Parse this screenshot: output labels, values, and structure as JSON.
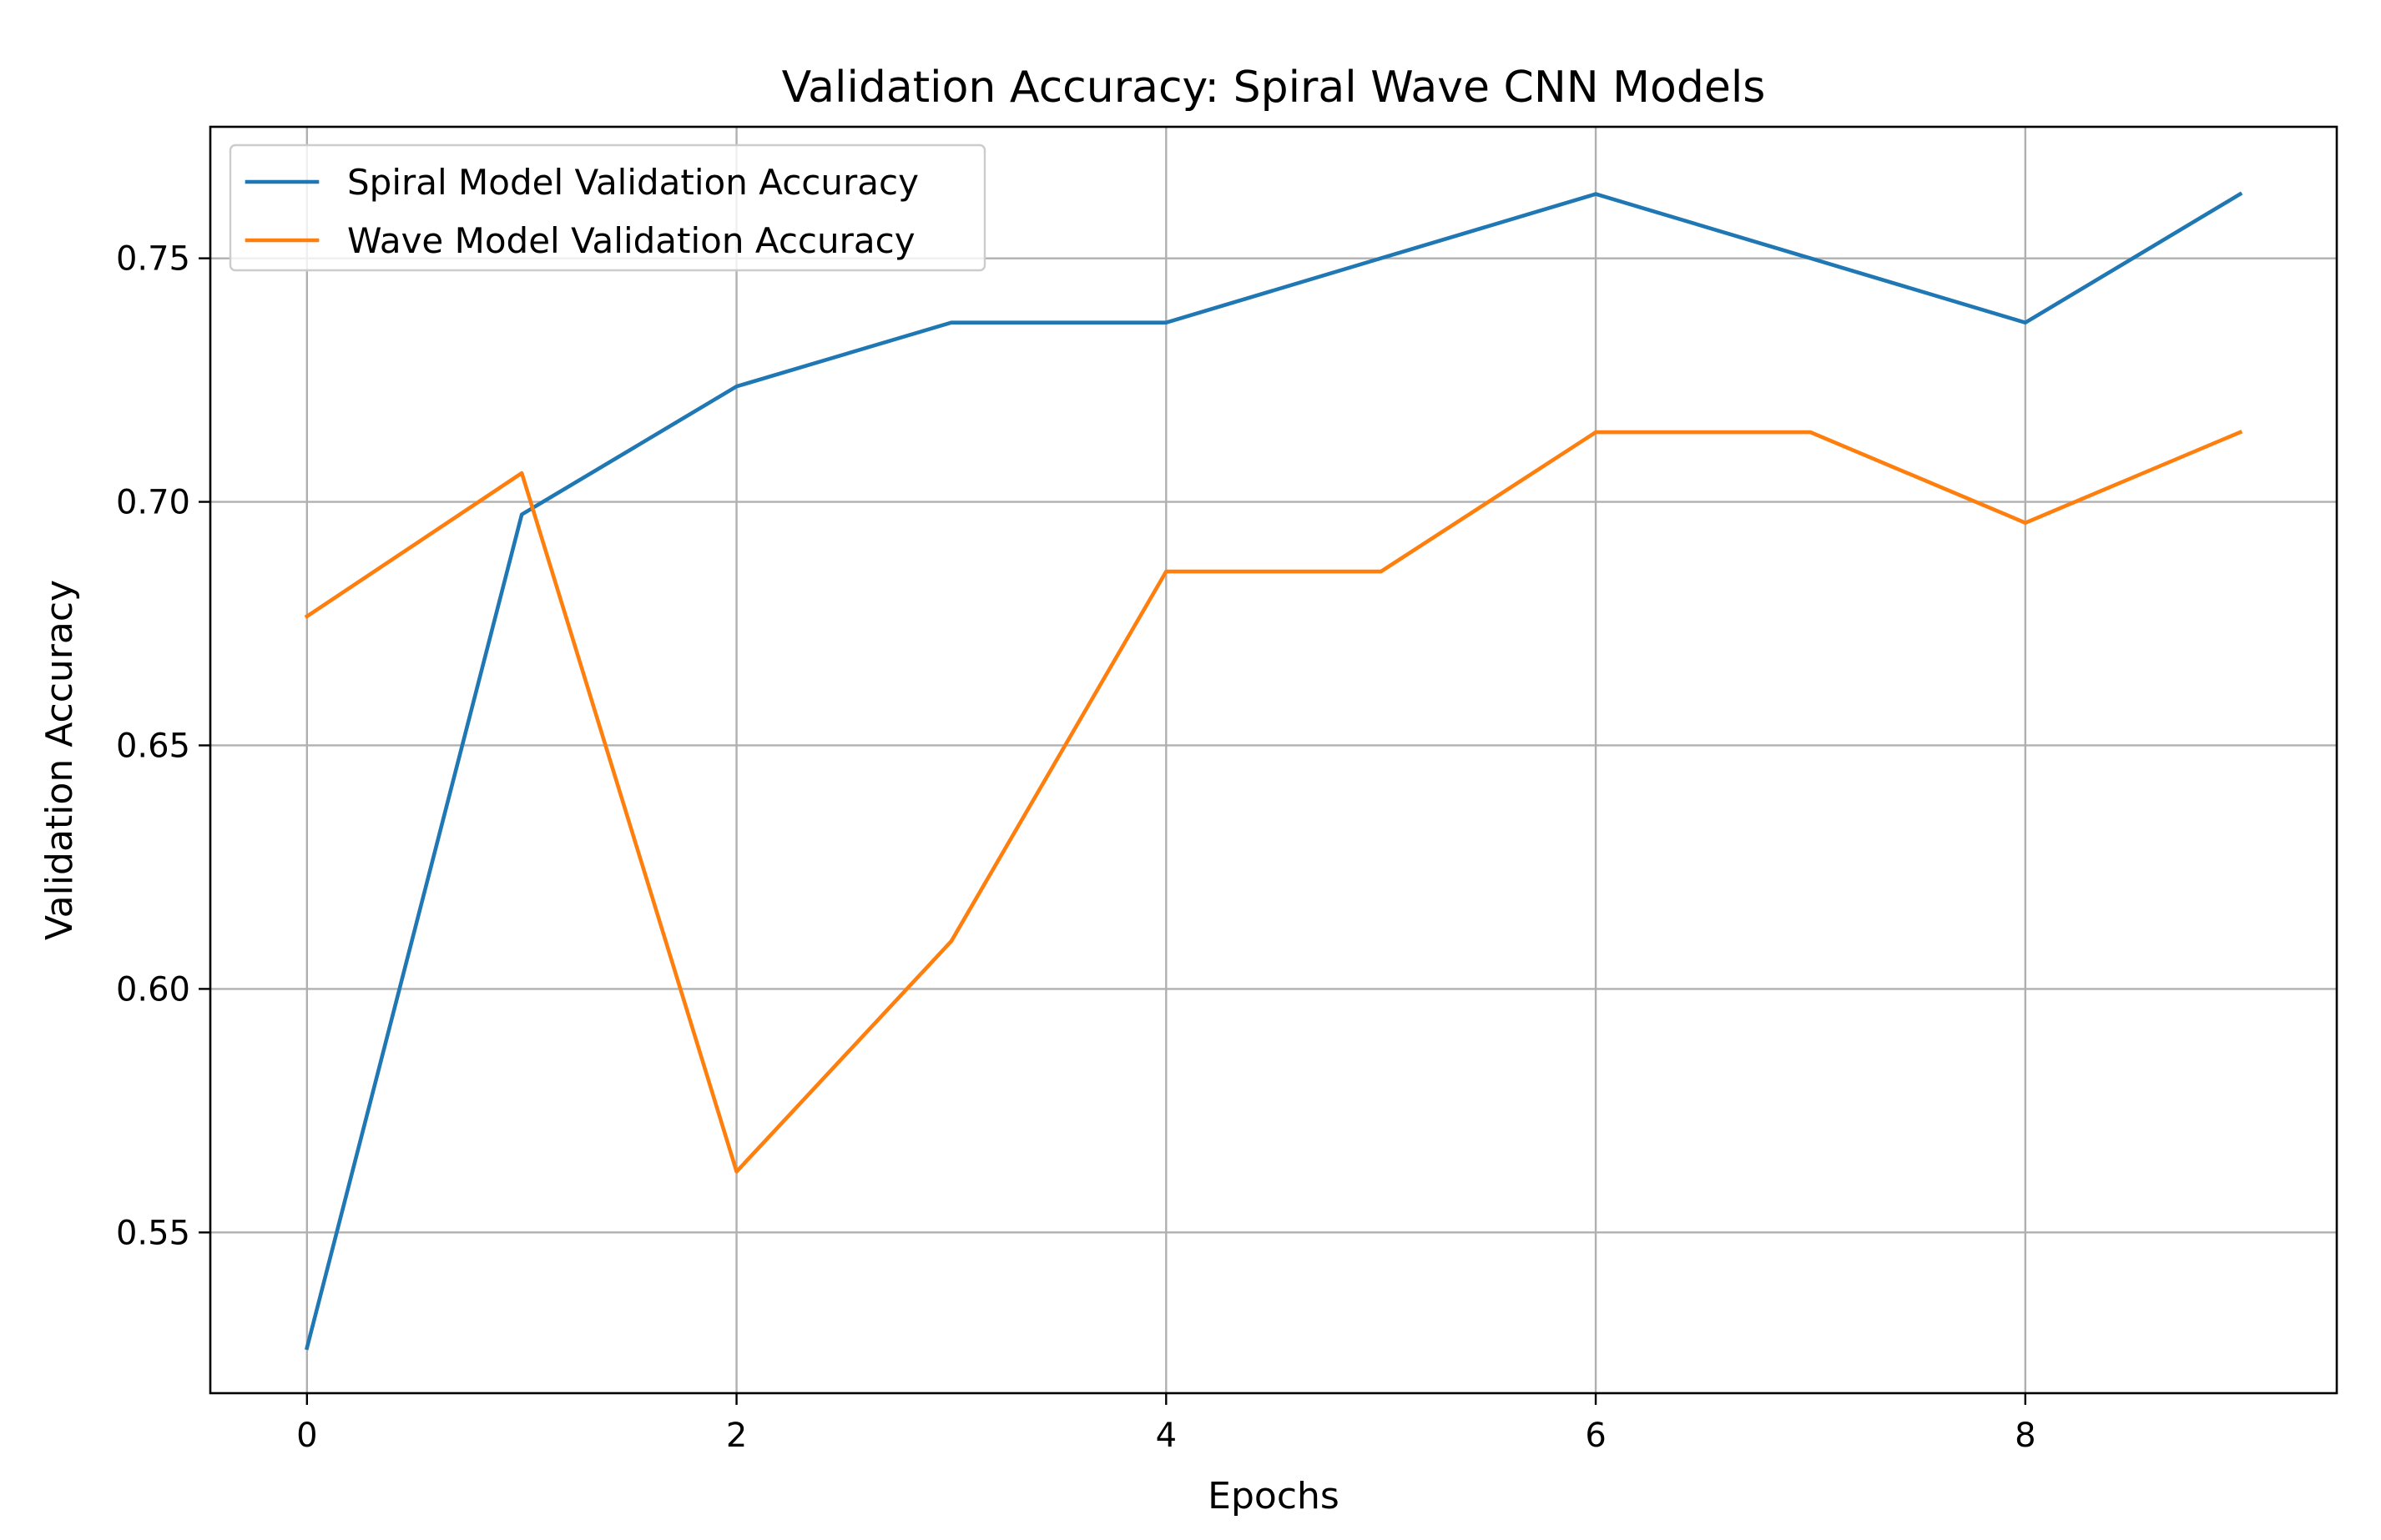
{
  "chart_data": {
    "type": "line",
    "title": "Validation Accuracy: Spiral Wave CNN Models",
    "xlabel": "Epochs",
    "ylabel": "Validation Accuracy",
    "x": [
      0,
      1,
      2,
      3,
      4,
      5,
      6,
      7,
      8,
      9
    ],
    "xlim": [
      -0.45,
      9.45
    ],
    "ylim": [
      0.517,
      0.777
    ],
    "xticks": [
      0,
      2,
      4,
      6,
      8
    ],
    "xtick_labels": [
      "0",
      "2",
      "4",
      "6",
      "8"
    ],
    "yticks": [
      0.55,
      0.6,
      0.65,
      0.7,
      0.75
    ],
    "ytick_labels": [
      "0.55",
      "0.60",
      "0.65",
      "0.70",
      "0.75"
    ],
    "grid": true,
    "legend_position": "top-left",
    "series": [
      {
        "name": "Spiral Model Validation Accuracy",
        "color": "#1f77b4",
        "values": [
          0.5263,
          0.6974,
          0.7237,
          0.7368,
          0.7368,
          0.75,
          0.7632,
          0.75,
          0.7368,
          0.7632
        ]
      },
      {
        "name": "Wave Model Validation Accuracy",
        "color": "#ff7f0e",
        "values": [
          0.6765,
          0.7059,
          0.5625,
          0.6098,
          0.6857,
          0.6857,
          0.7143,
          0.7143,
          0.6957,
          0.7143
        ]
      }
    ]
  }
}
